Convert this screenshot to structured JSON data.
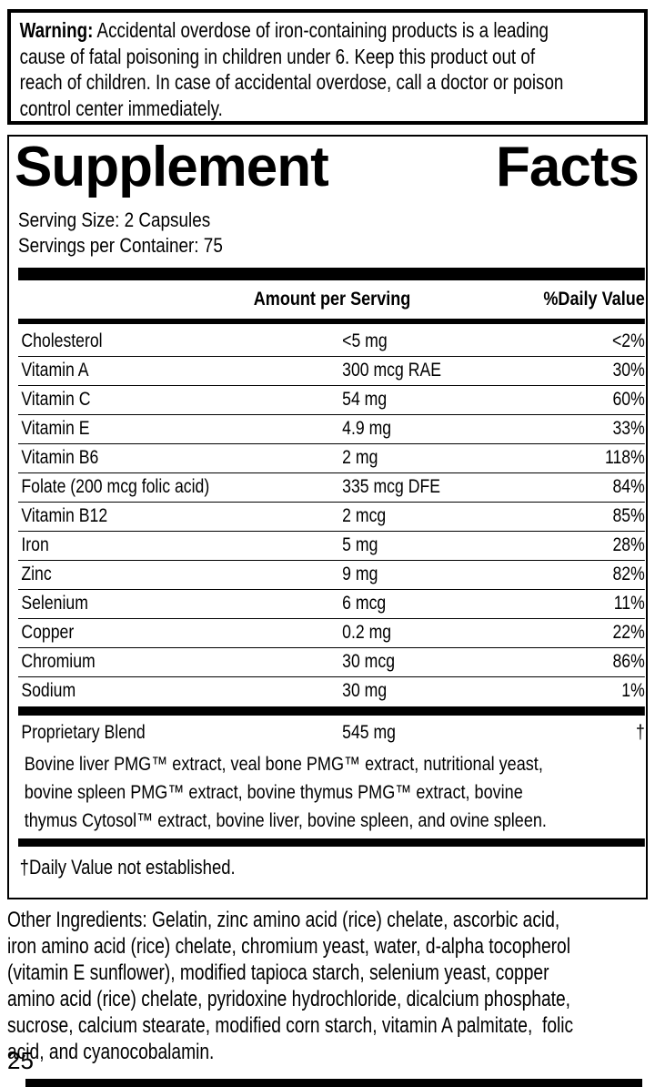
{
  "colors": {
    "ink": "#000000",
    "paper": "#ffffff"
  },
  "warning": {
    "bold_label": "Warning:",
    "lines": [
      " Accidental overdose of iron-containing products is a leading",
      "cause of fatal poisoning in children under 6. Keep this product out of",
      "reach of children. In case of accidental overdose, call a doctor or poison",
      "control center immediately."
    ]
  },
  "supplement_facts": {
    "title_word1": "Supplement",
    "title_word2": "Facts",
    "serving_size": "Serving Size: 2 Capsules",
    "servings_per_container": "Servings per Container: 75",
    "columns": {
      "amount": "Amount per Serving",
      "daily_value": "%Daily Value"
    },
    "rows": [
      {
        "name": "Cholesterol",
        "amount": "<5 mg",
        "dv": "<2%"
      },
      {
        "name": "Vitamin A",
        "amount": "300 mcg RAE",
        "dv": "30%"
      },
      {
        "name": "Vitamin C",
        "amount": "54 mg",
        "dv": "60%"
      },
      {
        "name": "Vitamin E",
        "amount": "4.9 mg",
        "dv": "33%"
      },
      {
        "name": "Vitamin B6",
        "amount": "2 mg",
        "dv": "118%"
      },
      {
        "name": "Folate (200 mcg folic acid)",
        "amount": "335 mcg DFE",
        "dv": "84%"
      },
      {
        "name": "Vitamin B12",
        "amount": "2 mcg",
        "dv": "85%"
      },
      {
        "name": "Iron",
        "amount": "5 mg",
        "dv": "28%"
      },
      {
        "name": "Zinc",
        "amount": "9 mg",
        "dv": "82%"
      },
      {
        "name": "Selenium",
        "amount": "6 mcg",
        "dv": "11%"
      },
      {
        "name": "Copper",
        "amount": "0.2 mg",
        "dv": "22%"
      },
      {
        "name": "Chromium",
        "amount": "30 mcg",
        "dv": "86%"
      },
      {
        "name": "Sodium",
        "amount": "30 mg",
        "dv": "1%"
      }
    ],
    "proprietary_blend": {
      "name": "Proprietary Blend",
      "amount": "545 mg",
      "dv": "†",
      "description_lines": [
        "Bovine liver PMG™ extract, veal bone PMG™ extract, nutritional yeast,",
        "bovine spleen PMG™ extract, bovine thymus PMG™ extract, bovine",
        "thymus Cytosol™ extract, bovine liver, bovine spleen, and ovine spleen."
      ]
    },
    "footnote": "†Daily Value not established."
  },
  "other_ingredients": {
    "lines": [
      "Other Ingredients: Gelatin, zinc amino acid (rice) chelate, ascorbic acid,",
      "iron amino acid (rice) chelate, chromium yeast, water, d-alpha tocopherol",
      "(vitamin E sunflower), modified tapioca starch, selenium yeast, copper",
      "amino acid (rice) chelate, pyridoxine hydrochloride, dicalcium phosphate,",
      "sucrose, calcium stearate, modified corn starch, vitamin A palmitate,  folic",
      "acid, and cyanocobalamin."
    ]
  },
  "page_number": "25"
}
